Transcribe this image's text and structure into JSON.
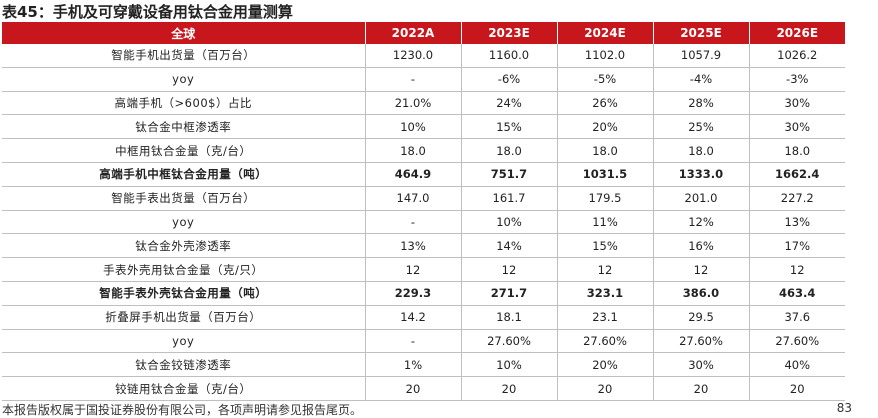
{
  "title": "表45：手机及可穿戴设备用钛合金用量测算",
  "table": {
    "headers": [
      "全球",
      "2022A",
      "2023E",
      "2024E",
      "2025E",
      "2026E"
    ],
    "rows": [
      {
        "label": "智能手机出货量（百万台）",
        "bold": false,
        "values": [
          "1230.0",
          "1160.0",
          "1102.0",
          "1057.9",
          "1026.2"
        ]
      },
      {
        "label": "yoy",
        "bold": false,
        "values": [
          "-",
          "-6%",
          "-5%",
          "-4%",
          "-3%"
        ]
      },
      {
        "label": "高端手机（>600$）占比",
        "bold": false,
        "values": [
          "21.0%",
          "24%",
          "26%",
          "28%",
          "30%"
        ]
      },
      {
        "label": "钛合金中框渗透率",
        "bold": false,
        "values": [
          "10%",
          "15%",
          "20%",
          "25%",
          "30%"
        ]
      },
      {
        "label": "中框用钛合金量（克/台）",
        "bold": false,
        "values": [
          "18.0",
          "18.0",
          "18.0",
          "18.0",
          "18.0"
        ]
      },
      {
        "label": "高端手机中框钛合金用量（吨）",
        "bold": true,
        "values": [
          "464.9",
          "751.7",
          "1031.5",
          "1333.0",
          "1662.4"
        ]
      },
      {
        "label": "智能手表出货量（百万台）",
        "bold": false,
        "values": [
          "147.0",
          "161.7",
          "179.5",
          "201.0",
          "227.2"
        ]
      },
      {
        "label": "yoy",
        "bold": false,
        "values": [
          "-",
          "10%",
          "11%",
          "12%",
          "13%"
        ]
      },
      {
        "label": "钛合金外壳渗透率",
        "bold": false,
        "values": [
          "13%",
          "14%",
          "15%",
          "16%",
          "17%"
        ]
      },
      {
        "label": "手表外壳用钛合金量（克/只）",
        "bold": false,
        "values": [
          "12",
          "12",
          "12",
          "12",
          "12"
        ]
      },
      {
        "label": "智能手表外壳钛合金用量（吨）",
        "bold": true,
        "values": [
          "229.3",
          "271.7",
          "323.1",
          "386.0",
          "463.4"
        ]
      },
      {
        "label": "折叠屏手机出货量（百万台）",
        "bold": false,
        "values": [
          "14.2",
          "18.1",
          "23.1",
          "29.5",
          "37.6"
        ]
      },
      {
        "label": "yoy",
        "bold": false,
        "values": [
          "-",
          "27.60%",
          "27.60%",
          "27.60%",
          "27.60%"
        ]
      },
      {
        "label": "钛合金铰链渗透率",
        "bold": false,
        "values": [
          "1%",
          "10%",
          "20%",
          "30%",
          "40%"
        ]
      },
      {
        "label": "铰链用钛合金量（克/台）",
        "bold": false,
        "values": [
          "20",
          "20",
          "20",
          "20",
          "20"
        ]
      }
    ]
  },
  "footer": {
    "disclaimer": "本报告版权属于国投证券股份有限公司，各项声明请参见报告尾页。",
    "page_number": "83"
  },
  "colors": {
    "header_bg": "#c8161d",
    "header_text": "#ffffff",
    "grid": "#bfbfbf"
  }
}
